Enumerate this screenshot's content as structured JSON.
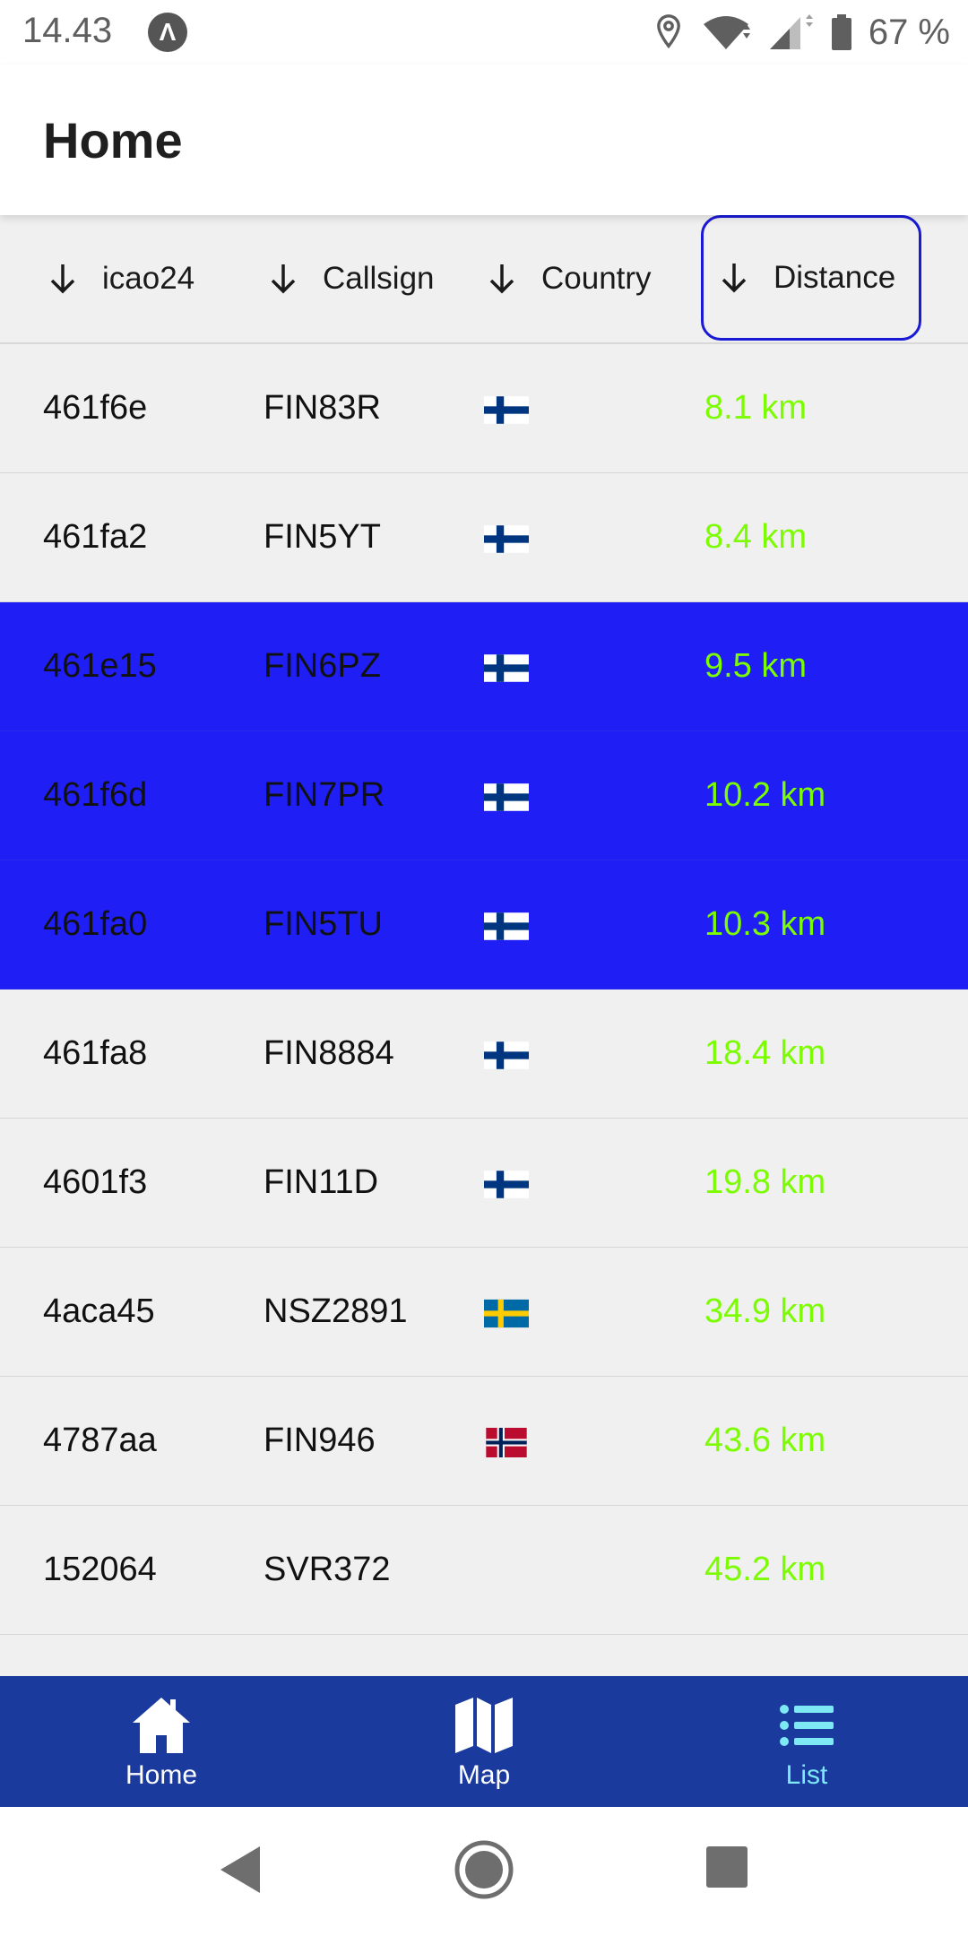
{
  "status_bar": {
    "time": "14.43",
    "app_icon_letter": "Λ",
    "battery_text": "67 %"
  },
  "app_bar": {
    "title": "Home"
  },
  "table": {
    "headers": {
      "icao24": "icao24",
      "callsign": "Callsign",
      "country": "Country",
      "distance": "Distance"
    },
    "rows": [
      {
        "icao24": "461f6e",
        "callsign": "FIN83R",
        "flag": "finland-flag-icon",
        "distance": "8.1 km",
        "selected": false
      },
      {
        "icao24": "461fa2",
        "callsign": "FIN5YT",
        "flag": "finland-flag-icon",
        "distance": "8.4 km",
        "selected": false
      },
      {
        "icao24": "461e15",
        "callsign": "FIN6PZ",
        "flag": "finland-flag-icon",
        "distance": "9.5 km",
        "selected": true
      },
      {
        "icao24": "461f6d",
        "callsign": "FIN7PR",
        "flag": "finland-flag-icon",
        "distance": "10.2 km",
        "selected": true
      },
      {
        "icao24": "461fa0",
        "callsign": "FIN5TU",
        "flag": "finland-flag-icon",
        "distance": "10.3 km",
        "selected": true
      },
      {
        "icao24": "461fa8",
        "callsign": "FIN8884",
        "flag": "finland-flag-icon",
        "distance": "18.4 km",
        "selected": false
      },
      {
        "icao24": "4601f3",
        "callsign": "FIN11D",
        "flag": "finland-flag-icon",
        "distance": "19.8 km",
        "selected": false
      },
      {
        "icao24": "4aca45",
        "callsign": "NSZ2891",
        "flag": "sweden-flag-icon",
        "distance": "34.9 km",
        "selected": false
      },
      {
        "icao24": "4787aa",
        "callsign": "FIN946",
        "flag": "norway-flag-icon",
        "distance": "43.6 km",
        "selected": false
      },
      {
        "icao24": "152064",
        "callsign": "SVR372",
        "flag": "",
        "distance": "45.2 km",
        "selected": false
      }
    ]
  },
  "bottom_nav": {
    "items": [
      {
        "label": "Home",
        "icon": "home-icon",
        "active": false
      },
      {
        "label": "Map",
        "icon": "map-icon",
        "active": false
      },
      {
        "label": "List",
        "icon": "list-icon",
        "active": true
      }
    ]
  },
  "colors": {
    "selected_row": "#1f1ff5",
    "distance_text": "#7cfc00",
    "bottom_nav": "#1a3a9e",
    "active_nav": "#7ee8f5",
    "sort_highlight": "#1a1ad6"
  }
}
